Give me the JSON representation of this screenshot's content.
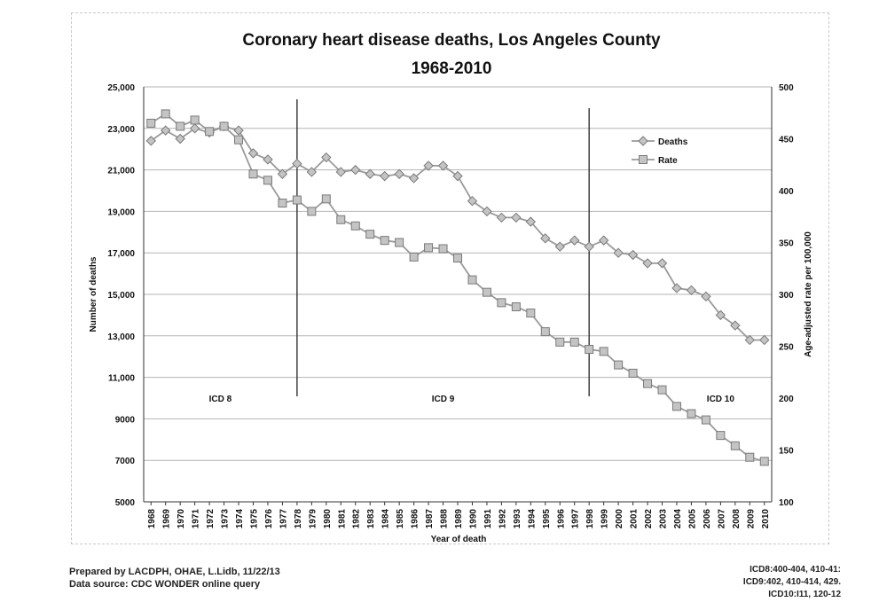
{
  "chart_data": {
    "type": "line",
    "title": "Coronary heart disease deaths, Los Angeles County",
    "subtitle": "1968-2010",
    "xlabel": "Year of death",
    "ylabel_left": "Number of deaths",
    "ylabel_right": "Age-adjusted rate per 100,000",
    "ylim_left": [
      5000,
      25000
    ],
    "ylim_right": [
      100,
      500
    ],
    "yticks_left": [
      "25,000",
      "23,000",
      "21,000",
      "19,000",
      "17,000",
      "15,000",
      "13,000",
      "11,000",
      "9000",
      "7000",
      "5000"
    ],
    "yticks_right": [
      "500",
      "450",
      "400",
      "350",
      "300",
      "250",
      "200",
      "150",
      "100"
    ],
    "categories": [
      "1968",
      "1969",
      "1970",
      "1971",
      "1972",
      "1973",
      "1974",
      "1975",
      "1976",
      "1977",
      "1978",
      "1979",
      "1980",
      "1981",
      "1982",
      "1983",
      "1984",
      "1985",
      "1986",
      "1987",
      "1988",
      "1989",
      "1990",
      "1991",
      "1992",
      "1993",
      "1994",
      "1995",
      "1996",
      "1997",
      "1998",
      "1999",
      "2000",
      "2001",
      "2002",
      "2003",
      "2004",
      "2005",
      "2006",
      "2007",
      "2008",
      "2009",
      "2010"
    ],
    "series": [
      {
        "name": "Deaths",
        "axis": "left",
        "marker": "diamond",
        "values": [
          22400,
          22900,
          22500,
          23000,
          22800,
          23100,
          22900,
          21800,
          21500,
          20800,
          21300,
          20900,
          21600,
          20900,
          21000,
          20800,
          20700,
          20800,
          20600,
          21200,
          21200,
          20700,
          19500,
          19000,
          18700,
          18700,
          18500,
          17700,
          17300,
          17600,
          17300,
          17600,
          17000,
          16900,
          16500,
          16500,
          15300,
          15200,
          14900,
          14000,
          13500,
          12800,
          12800
        ]
      },
      {
        "name": "Rate",
        "axis": "right",
        "marker": "square",
        "values": [
          465,
          474,
          462,
          468,
          457,
          462,
          449,
          416,
          410,
          388,
          391,
          380,
          392,
          372,
          366,
          358,
          352,
          350,
          336,
          345,
          344,
          335,
          314,
          302,
          292,
          288,
          282,
          264,
          254,
          254,
          247,
          245,
          232,
          224,
          214,
          208,
          192,
          185,
          179,
          164,
          154,
          143,
          139
        ]
      }
    ],
    "annotations": [
      {
        "label": "ICD 8",
        "start": "1968",
        "end": "1978"
      },
      {
        "label": "ICD 9",
        "start": "1978",
        "end": "1998"
      },
      {
        "label": "ICD 10",
        "start": "1998",
        "end": "2010"
      }
    ],
    "legend_position": "top-right",
    "grid": true
  },
  "footer": {
    "prepared_by": "Prepared by LACDPH, OHAE, L.Lidb, 11/22/13",
    "source": "Data source: CDC WONDER online query",
    "icd8": "ICD8:400-404, 410-41:",
    "icd9": "ICD9:402, 410-414, 429.",
    "icd10": "ICD10:I11, 120-12"
  },
  "colors": {
    "line": "#9a9a9a",
    "marker_fill": "#c4c4c4",
    "marker_stroke": "#7a7a7a",
    "grid": "#b4b4b4",
    "axis": "#333333",
    "text": "#111111"
  }
}
